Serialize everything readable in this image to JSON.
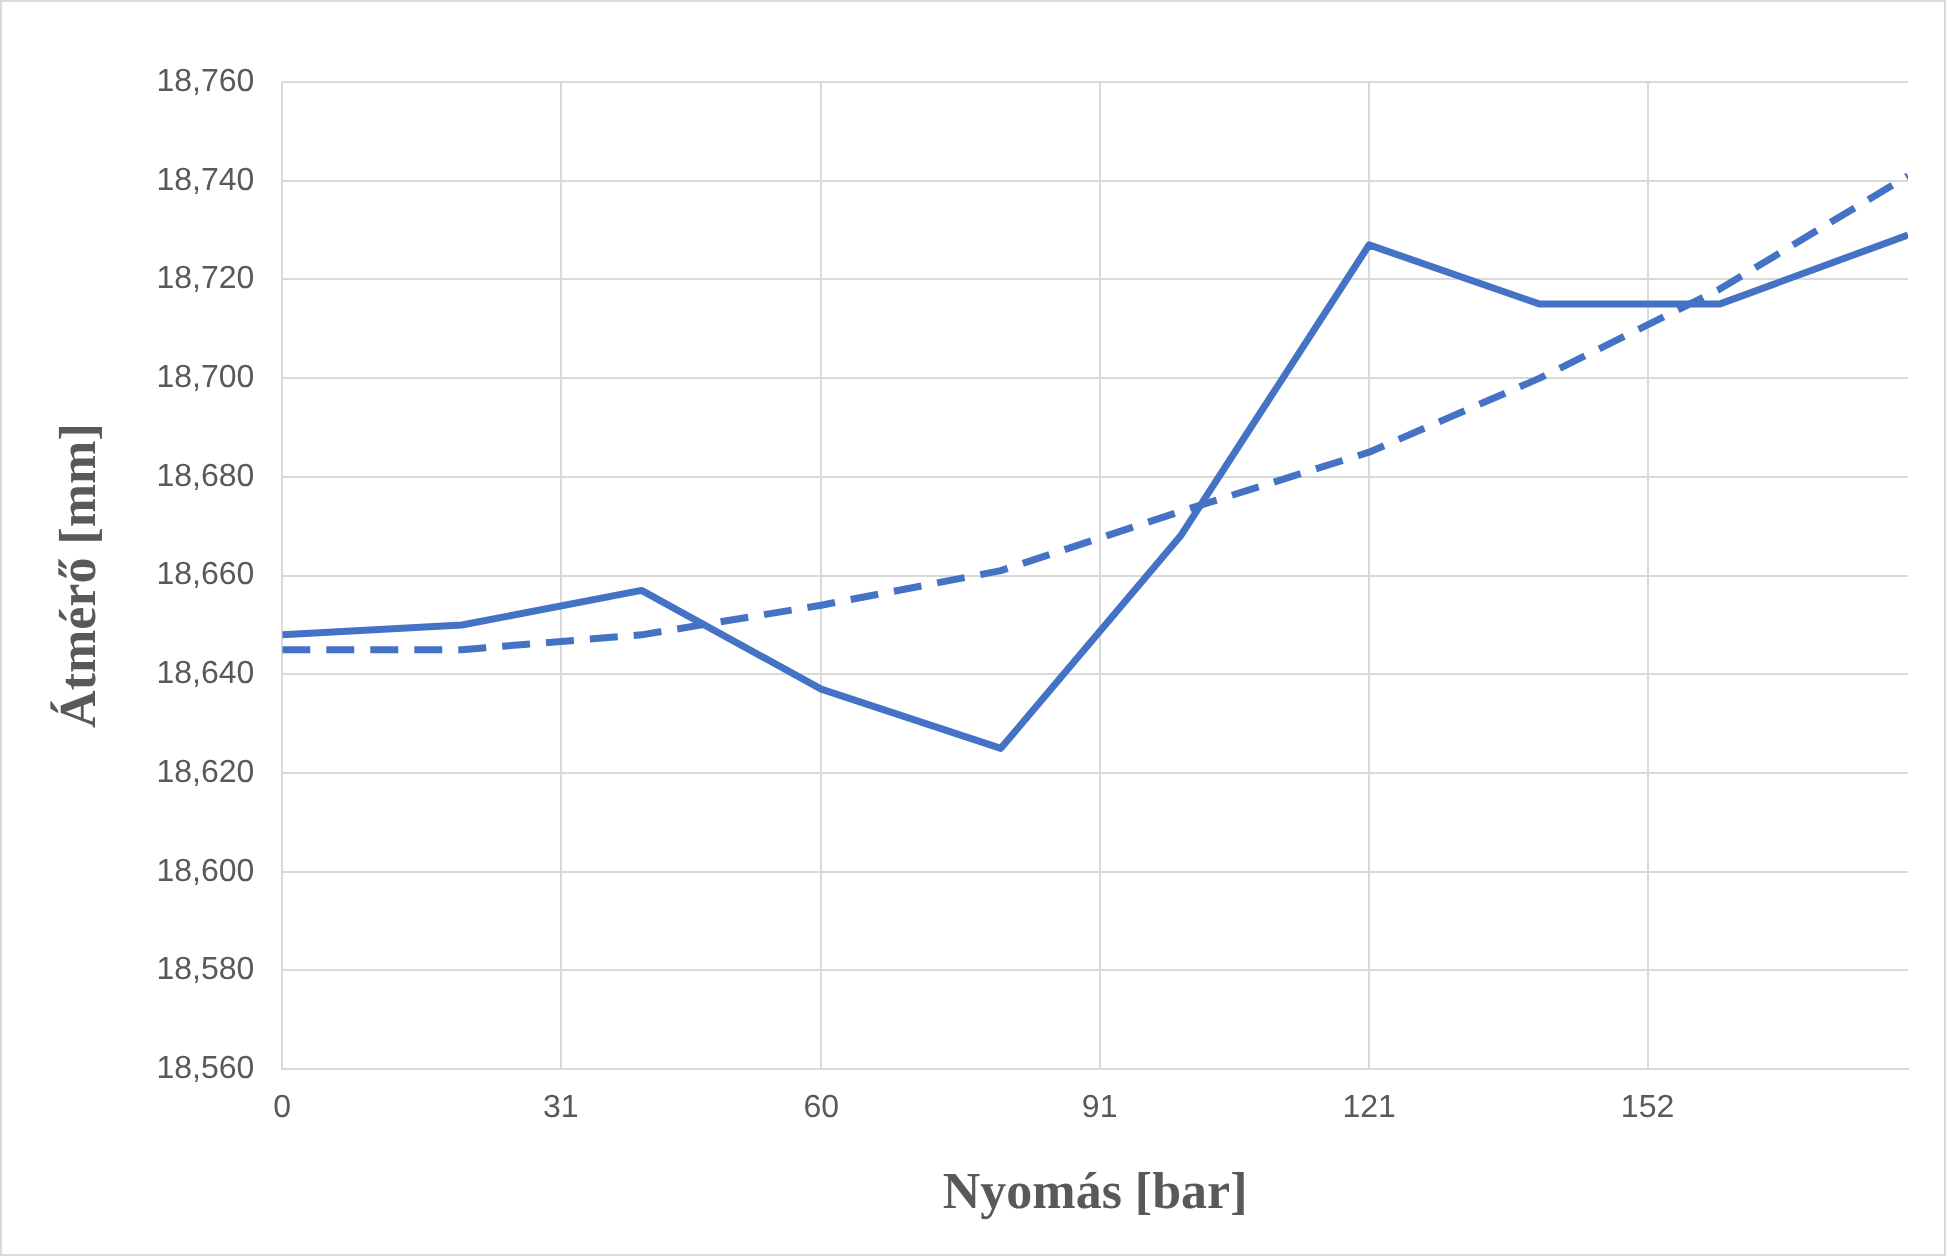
{
  "chart_data": {
    "type": "line",
    "xlabel": "Nyomás [bar]",
    "ylabel": "Átmérő [mm]",
    "x": [
      0,
      20,
      40,
      60,
      80,
      100,
      121,
      140,
      160,
      181
    ],
    "series": [
      {
        "color": "#4472c4",
        "line_style": "solid",
        "values": [
          18648,
          18650,
          18657,
          18637,
          18625,
          18668,
          18727,
          18715,
          18715,
          18729
        ]
      },
      {
        "color": "#4472c4",
        "line_style": "dashed",
        "values": [
          18645,
          18645,
          18648,
          18654,
          18661,
          18673,
          18685,
          18700,
          18718,
          18741
        ]
      }
    ],
    "xlim": [
      0,
      181
    ],
    "xticks": [
      0,
      31,
      60,
      91,
      121,
      152
    ],
    "ylim": [
      18560,
      18760
    ],
    "yticks": [
      {
        "value": 18560,
        "label": "18,560"
      },
      {
        "value": 18580,
        "label": "18,580"
      },
      {
        "value": 18600,
        "label": "18,600"
      },
      {
        "value": 18620,
        "label": "18,620"
      },
      {
        "value": 18640,
        "label": "18,640"
      },
      {
        "value": 18660,
        "label": "18,660"
      },
      {
        "value": 18680,
        "label": "18,680"
      },
      {
        "value": 18700,
        "label": "18,700"
      },
      {
        "value": 18720,
        "label": "18,720"
      },
      {
        "value": 18740,
        "label": "18,740"
      },
      {
        "value": 18760,
        "label": "18,760"
      }
    ],
    "grid": true,
    "legend": false,
    "marker": "none"
  }
}
